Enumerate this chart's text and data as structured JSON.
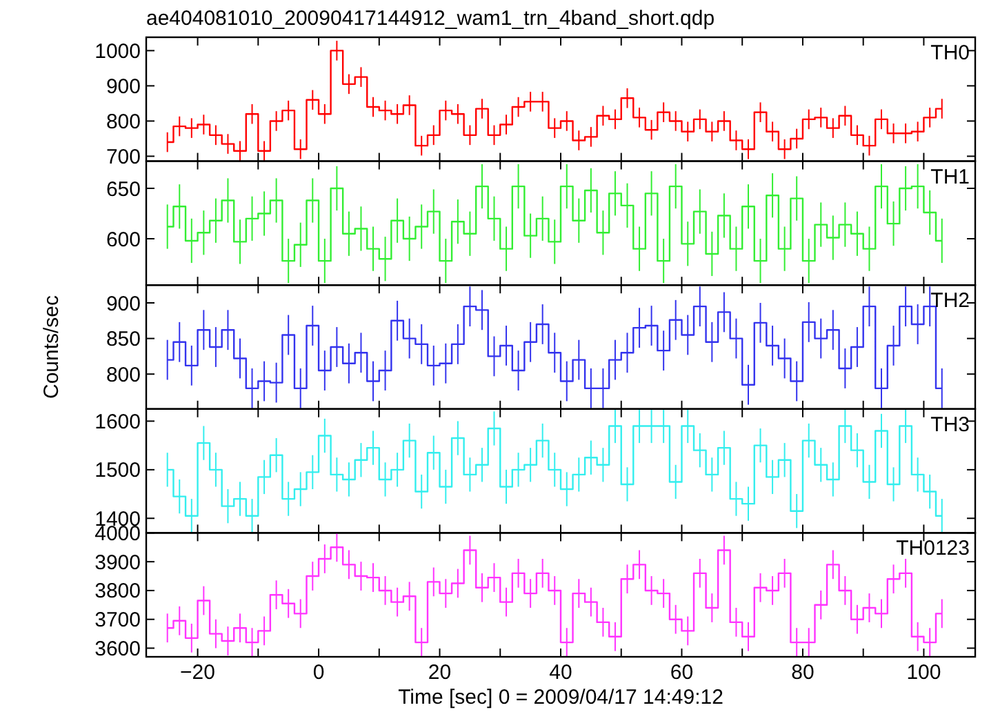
{
  "chart_data": [
    {
      "type": "step",
      "title": "ae404081010_20090417144912_wam1_trn_4band_short.qdp",
      "tick_labels": "y",
      "x": [
        -25,
        -23,
        -21,
        -19,
        -17,
        -15,
        -13,
        -11,
        -9,
        -7,
        -5,
        -3,
        -1,
        1,
        3,
        5,
        7,
        9,
        11,
        13,
        15,
        17,
        19,
        21,
        23,
        25,
        27,
        29,
        31,
        33,
        35,
        37,
        39,
        41,
        43,
        45,
        47,
        49,
        51,
        53,
        55,
        57,
        59,
        61,
        63,
        65,
        67,
        69,
        71,
        73,
        75,
        77,
        79,
        81,
        83,
        85,
        87,
        89,
        91,
        93,
        95,
        97,
        99,
        101,
        103
      ],
      "xlim": [
        -28.5,
        108.5
      ],
      "xticks": [
        -20,
        {
          "value": -10,
          "label": null
        },
        0,
        {
          "value": 10,
          "label": null
        },
        20,
        {
          "value": 30,
          "label": null
        },
        40,
        {
          "value": 50,
          "label": null
        },
        60,
        {
          "value": 70,
          "label": null
        },
        80,
        {
          "value": 90,
          "label": null
        },
        100
      ],
      "ylim": [
        686,
        1038
      ],
      "yticks": [
        700,
        800,
        900,
        1000
      ],
      "series": [
        {
          "name": "TH0",
          "color": "#ff0000",
          "values": [
            740,
            785,
            780,
            790,
            760,
            735,
            715,
            820,
            715,
            800,
            830,
            720,
            860,
            820,
            1000,
            905,
            925,
            840,
            830,
            820,
            845,
            730,
            760,
            830,
            820,
            760,
            835,
            760,
            790,
            840,
            855,
            855,
            780,
            800,
            745,
            755,
            815,
            805,
            865,
            810,
            775,
            825,
            800,
            770,
            805,
            770,
            800,
            745,
            720,
            825,
            770,
            720,
            750,
            805,
            810,
            780,
            815,
            760,
            730,
            805,
            765,
            765,
            770,
            810,
            835
          ],
          "errors": [
            28,
            28,
            28,
            28,
            28,
            28,
            28,
            28,
            28,
            28,
            28,
            28,
            28,
            28,
            28,
            28,
            28,
            28,
            28,
            28,
            28,
            28,
            28,
            28,
            28,
            28,
            28,
            28,
            28,
            28,
            28,
            28,
            28,
            28,
            28,
            28,
            28,
            28,
            28,
            28,
            28,
            28,
            28,
            28,
            28,
            28,
            28,
            28,
            28,
            28,
            28,
            28,
            28,
            28,
            28,
            28,
            28,
            28,
            28,
            28,
            28,
            28,
            28,
            28,
            28
          ]
        }
      ]
    },
    {
      "type": "step",
      "tick_labels": "y",
      "x": [
        -25,
        -23,
        -21,
        -19,
        -17,
        -15,
        -13,
        -11,
        -9,
        -7,
        -5,
        -3,
        -1,
        1,
        3,
        5,
        7,
        9,
        11,
        13,
        15,
        17,
        19,
        21,
        23,
        25,
        27,
        29,
        31,
        33,
        35,
        37,
        39,
        41,
        43,
        45,
        47,
        49,
        51,
        53,
        55,
        57,
        59,
        61,
        63,
        65,
        67,
        69,
        71,
        73,
        75,
        77,
        79,
        81,
        83,
        85,
        87,
        89,
        91,
        93,
        95,
        97,
        99,
        101,
        103
      ],
      "xlim": [
        -28.5,
        108.5
      ],
      "xticks": [
        -20,
        {
          "value": -10,
          "label": null
        },
        0,
        {
          "value": 10,
          "label": null
        },
        20,
        {
          "value": 30,
          "label": null
        },
        40,
        {
          "value": 50,
          "label": null
        },
        60,
        {
          "value": 70,
          "label": null
        },
        80,
        {
          "value": 90,
          "label": null
        },
        100
      ],
      "ylim": [
        554,
        677
      ],
      "yticks": [
        600,
        650
      ],
      "series": [
        {
          "name": "TH1",
          "color": "#33ee33",
          "values": [
            612,
            632,
            598,
            606,
            618,
            638,
            597,
            620,
            625,
            638,
            578,
            594,
            638,
            578,
            650,
            605,
            610,
            590,
            580,
            618,
            600,
            612,
            627,
            578,
            617,
            605,
            652,
            620,
            590,
            652,
            603,
            620,
            597,
            652,
            618,
            648,
            606,
            645,
            633,
            590,
            645,
            578,
            652,
            595,
            627,
            585,
            623,
            590,
            632,
            578,
            643,
            590,
            640,
            578,
            614,
            601,
            614,
            605,
            590,
            652,
            615,
            650,
            652,
            626,
            598
          ],
          "errors": [
            22,
            22,
            22,
            22,
            22,
            22,
            22,
            22,
            22,
            22,
            22,
            22,
            22,
            22,
            22,
            22,
            22,
            22,
            22,
            22,
            22,
            22,
            22,
            22,
            22,
            22,
            22,
            22,
            22,
            22,
            22,
            22,
            22,
            22,
            22,
            22,
            22,
            22,
            22,
            22,
            22,
            22,
            22,
            22,
            22,
            22,
            22,
            22,
            22,
            22,
            22,
            22,
            22,
            22,
            22,
            22,
            22,
            22,
            22,
            22,
            22,
            22,
            22,
            22,
            22
          ]
        }
      ]
    },
    {
      "type": "step",
      "tick_labels": "y",
      "ylabel": "Counts/sec",
      "x": [
        -25,
        -23,
        -21,
        -19,
        -17,
        -15,
        -13,
        -11,
        -9,
        -7,
        -5,
        -3,
        -1,
        1,
        3,
        5,
        7,
        9,
        11,
        13,
        15,
        17,
        19,
        21,
        23,
        25,
        27,
        29,
        31,
        33,
        35,
        37,
        39,
        41,
        43,
        45,
        47,
        49,
        51,
        53,
        55,
        57,
        59,
        61,
        63,
        65,
        67,
        69,
        71,
        73,
        75,
        77,
        79,
        81,
        83,
        85,
        87,
        89,
        91,
        93,
        95,
        97,
        99,
        101,
        103
      ],
      "xlim": [
        -28.5,
        108.5
      ],
      "xticks": [
        -20,
        {
          "value": -10,
          "label": null
        },
        0,
        {
          "value": 10,
          "label": null
        },
        20,
        {
          "value": 30,
          "label": null
        },
        40,
        {
          "value": 50,
          "label": null
        },
        60,
        {
          "value": 70,
          "label": null
        },
        80,
        {
          "value": 90,
          "label": null
        },
        100
      ],
      "ylim": [
        751,
        925
      ],
      "yticks": [
        800,
        850,
        900
      ],
      "series": [
        {
          "name": "TH2",
          "color": "#3333ee",
          "values": [
            820,
            845,
            812,
            862,
            838,
            862,
            822,
            780,
            790,
            788,
            855,
            780,
            868,
            805,
            838,
            815,
            830,
            790,
            805,
            875,
            850,
            842,
            812,
            815,
            842,
            895,
            890,
            825,
            840,
            805,
            845,
            870,
            830,
            790,
            820,
            780,
            780,
            820,
            830,
            865,
            868,
            833,
            876,
            855,
            895,
            845,
            887,
            850,
            785,
            872,
            840,
            822,
            790,
            873,
            850,
            862,
            808,
            838,
            895,
            780,
            840,
            895,
            870,
            895,
            780
          ],
          "errors": [
            28,
            28,
            28,
            28,
            28,
            28,
            28,
            28,
            28,
            28,
            28,
            28,
            28,
            28,
            28,
            28,
            28,
            28,
            28,
            28,
            28,
            28,
            28,
            28,
            28,
            28,
            28,
            28,
            28,
            28,
            28,
            28,
            28,
            28,
            28,
            28,
            28,
            28,
            28,
            28,
            28,
            28,
            28,
            28,
            28,
            28,
            28,
            28,
            28,
            28,
            28,
            28,
            28,
            28,
            28,
            28,
            28,
            28,
            28,
            28,
            28,
            28,
            28,
            28,
            28
          ]
        }
      ]
    },
    {
      "type": "step",
      "tick_labels": "y",
      "x": [
        -25,
        -23,
        -21,
        -19,
        -17,
        -15,
        -13,
        -11,
        -9,
        -7,
        -5,
        -3,
        -1,
        1,
        3,
        5,
        7,
        9,
        11,
        13,
        15,
        17,
        19,
        21,
        23,
        25,
        27,
        29,
        31,
        33,
        35,
        37,
        39,
        41,
        43,
        45,
        47,
        49,
        51,
        53,
        55,
        57,
        59,
        61,
        63,
        65,
        67,
        69,
        71,
        73,
        75,
        77,
        79,
        81,
        83,
        85,
        87,
        89,
        91,
        93,
        95,
        97,
        99,
        101,
        103
      ],
      "xlim": [
        -28.5,
        108.5
      ],
      "xticks": [
        -20,
        {
          "value": -10,
          "label": null
        },
        0,
        {
          "value": 10,
          "label": null
        },
        20,
        {
          "value": 30,
          "label": null
        },
        40,
        {
          "value": 50,
          "label": null
        },
        60,
        {
          "value": 70,
          "label": null
        },
        80,
        {
          "value": 90,
          "label": null
        },
        100
      ],
      "ylim": [
        1370,
        1625
      ],
      "yticks": [
        1400,
        1500,
        1600
      ],
      "series": [
        {
          "name": "TH3",
          "color": "#33eeee",
          "values": [
            1500,
            1445,
            1405,
            1555,
            1500,
            1425,
            1440,
            1405,
            1485,
            1530,
            1440,
            1460,
            1495,
            1570,
            1490,
            1480,
            1520,
            1545,
            1480,
            1500,
            1560,
            1455,
            1535,
            1465,
            1565,
            1490,
            1510,
            1585,
            1465,
            1500,
            1510,
            1560,
            1500,
            1460,
            1490,
            1525,
            1510,
            1590,
            1470,
            1590,
            1590,
            1590,
            1475,
            1590,
            1540,
            1490,
            1545,
            1440,
            1430,
            1550,
            1485,
            1520,
            1415,
            1560,
            1510,
            1480,
            1590,
            1540,
            1475,
            1580,
            1470,
            1590,
            1490,
            1455,
            1405
          ],
          "errors": [
            35,
            35,
            35,
            35,
            35,
            35,
            35,
            35,
            35,
            35,
            35,
            35,
            35,
            35,
            35,
            35,
            35,
            35,
            35,
            35,
            35,
            35,
            35,
            35,
            35,
            35,
            35,
            35,
            35,
            35,
            35,
            35,
            35,
            35,
            35,
            35,
            35,
            35,
            35,
            35,
            35,
            35,
            35,
            35,
            35,
            35,
            35,
            35,
            35,
            35,
            35,
            35,
            35,
            35,
            35,
            35,
            35,
            35,
            35,
            35,
            35,
            35,
            35,
            35,
            35
          ]
        }
      ]
    },
    {
      "type": "step",
      "xlabel": "Time [sec] 0 = 2009/04/17 14:49:12",
      "x": [
        -25,
        -23,
        -21,
        -19,
        -17,
        -15,
        -13,
        -11,
        -9,
        -7,
        -5,
        -3,
        -1,
        1,
        3,
        5,
        7,
        9,
        11,
        13,
        15,
        17,
        19,
        21,
        23,
        25,
        27,
        29,
        31,
        33,
        35,
        37,
        39,
        41,
        43,
        45,
        47,
        49,
        51,
        53,
        55,
        57,
        59,
        61,
        63,
        65,
        67,
        69,
        71,
        73,
        75,
        77,
        79,
        81,
        83,
        85,
        87,
        89,
        91,
        93,
        95,
        97,
        99,
        101,
        103
      ],
      "xlim": [
        -28.5,
        108.5
      ],
      "xticks": [
        -20,
        {
          "value": -10,
          "label": null
        },
        0,
        {
          "value": 10,
          "label": null
        },
        20,
        {
          "value": 30,
          "label": null
        },
        40,
        {
          "value": 50,
          "label": null
        },
        60,
        {
          "value": 70,
          "label": null
        },
        80,
        {
          "value": 90,
          "label": null
        },
        100
      ],
      "ylim": [
        3570,
        4000
      ],
      "yticks": [
        3600,
        3700,
        3800,
        3900,
        4000
      ],
      "series": [
        {
          "name": "TH0123",
          "color": "#ff33ff",
          "values": [
            3670,
            3695,
            3635,
            3765,
            3650,
            3625,
            3670,
            3620,
            3660,
            3785,
            3755,
            3720,
            3850,
            3910,
            3950,
            3890,
            3850,
            3845,
            3800,
            3760,
            3780,
            3620,
            3830,
            3790,
            3825,
            3940,
            3810,
            3845,
            3760,
            3860,
            3790,
            3860,
            3800,
            3620,
            3790,
            3760,
            3690,
            3640,
            3840,
            3890,
            3800,
            3790,
            3700,
            3660,
            3860,
            3740,
            3940,
            3690,
            3640,
            3810,
            3800,
            3860,
            3620,
            3620,
            3750,
            3890,
            3800,
            3700,
            3740,
            3720,
            3840,
            3860,
            3640,
            3620,
            3720
          ],
          "errors": [
            50,
            50,
            50,
            50,
            50,
            50,
            50,
            50,
            50,
            50,
            50,
            50,
            50,
            50,
            50,
            50,
            50,
            50,
            50,
            50,
            50,
            50,
            50,
            50,
            50,
            50,
            50,
            50,
            50,
            50,
            50,
            50,
            50,
            50,
            50,
            50,
            50,
            50,
            50,
            50,
            50,
            50,
            50,
            50,
            50,
            50,
            50,
            50,
            50,
            50,
            50,
            50,
            50,
            50,
            50,
            50,
            50,
            50,
            50,
            50,
            50,
            50,
            50,
            50,
            50
          ]
        }
      ]
    }
  ]
}
